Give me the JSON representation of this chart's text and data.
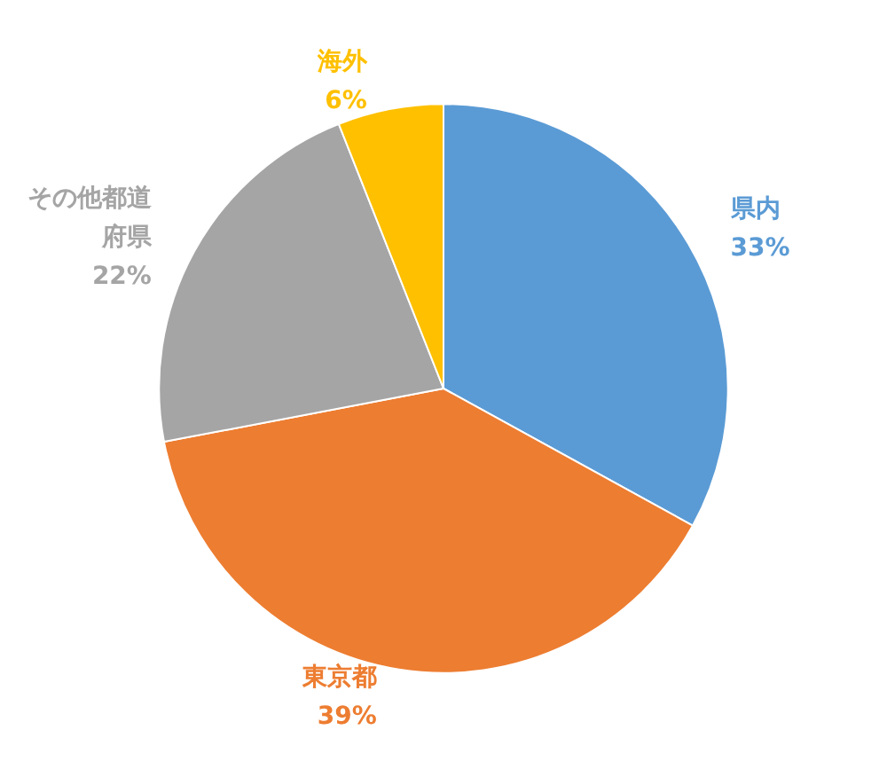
{
  "chart_data": {
    "type": "pie",
    "categories": [
      "県内",
      "東京都",
      "その他都道府県",
      "海外"
    ],
    "values": [
      33,
      39,
      22,
      6
    ],
    "value_labels": [
      "33%",
      "39%",
      "22%",
      "6%"
    ],
    "colors": [
      "#5b9bd5",
      "#ed7d31",
      "#a5a5a5",
      "#ffc000"
    ]
  }
}
